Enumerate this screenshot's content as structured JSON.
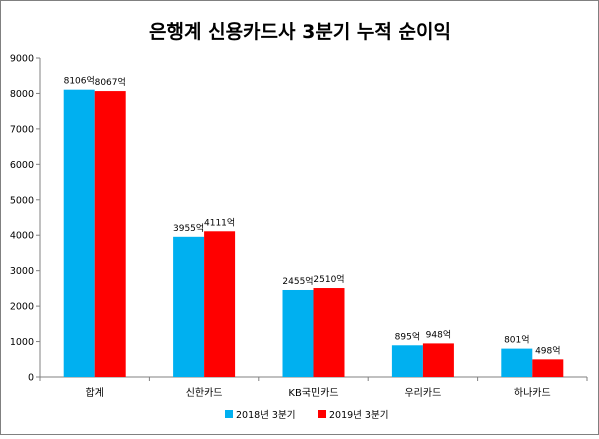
{
  "chart_data": {
    "type": "bar",
    "title": "은행계 신용카드사 3분기 누적 순이익",
    "categories": [
      "합계",
      "신한카드",
      "KB국민카드",
      "우리카드",
      "하나카드"
    ],
    "series": [
      {
        "name": "2018년 3분기",
        "values": [
          8106,
          3955,
          2455,
          895,
          801
        ],
        "labels": [
          "8106억",
          "3955억",
          "2455억",
          "895억",
          "801억"
        ],
        "color": "#00b0f0"
      },
      {
        "name": "2019년 3분기",
        "values": [
          8067,
          4111,
          2510,
          948,
          498
        ],
        "labels": [
          "8067억",
          "4111억",
          "2510억",
          "948억",
          "498억"
        ],
        "color": "#ff0000"
      }
    ],
    "ylim": [
      0,
      9000
    ],
    "yticks": [
      0,
      1000,
      2000,
      3000,
      4000,
      5000,
      6000,
      7000,
      8000,
      9000
    ],
    "grid": false,
    "legend": "bottom",
    "xlabel": "",
    "ylabel": ""
  }
}
